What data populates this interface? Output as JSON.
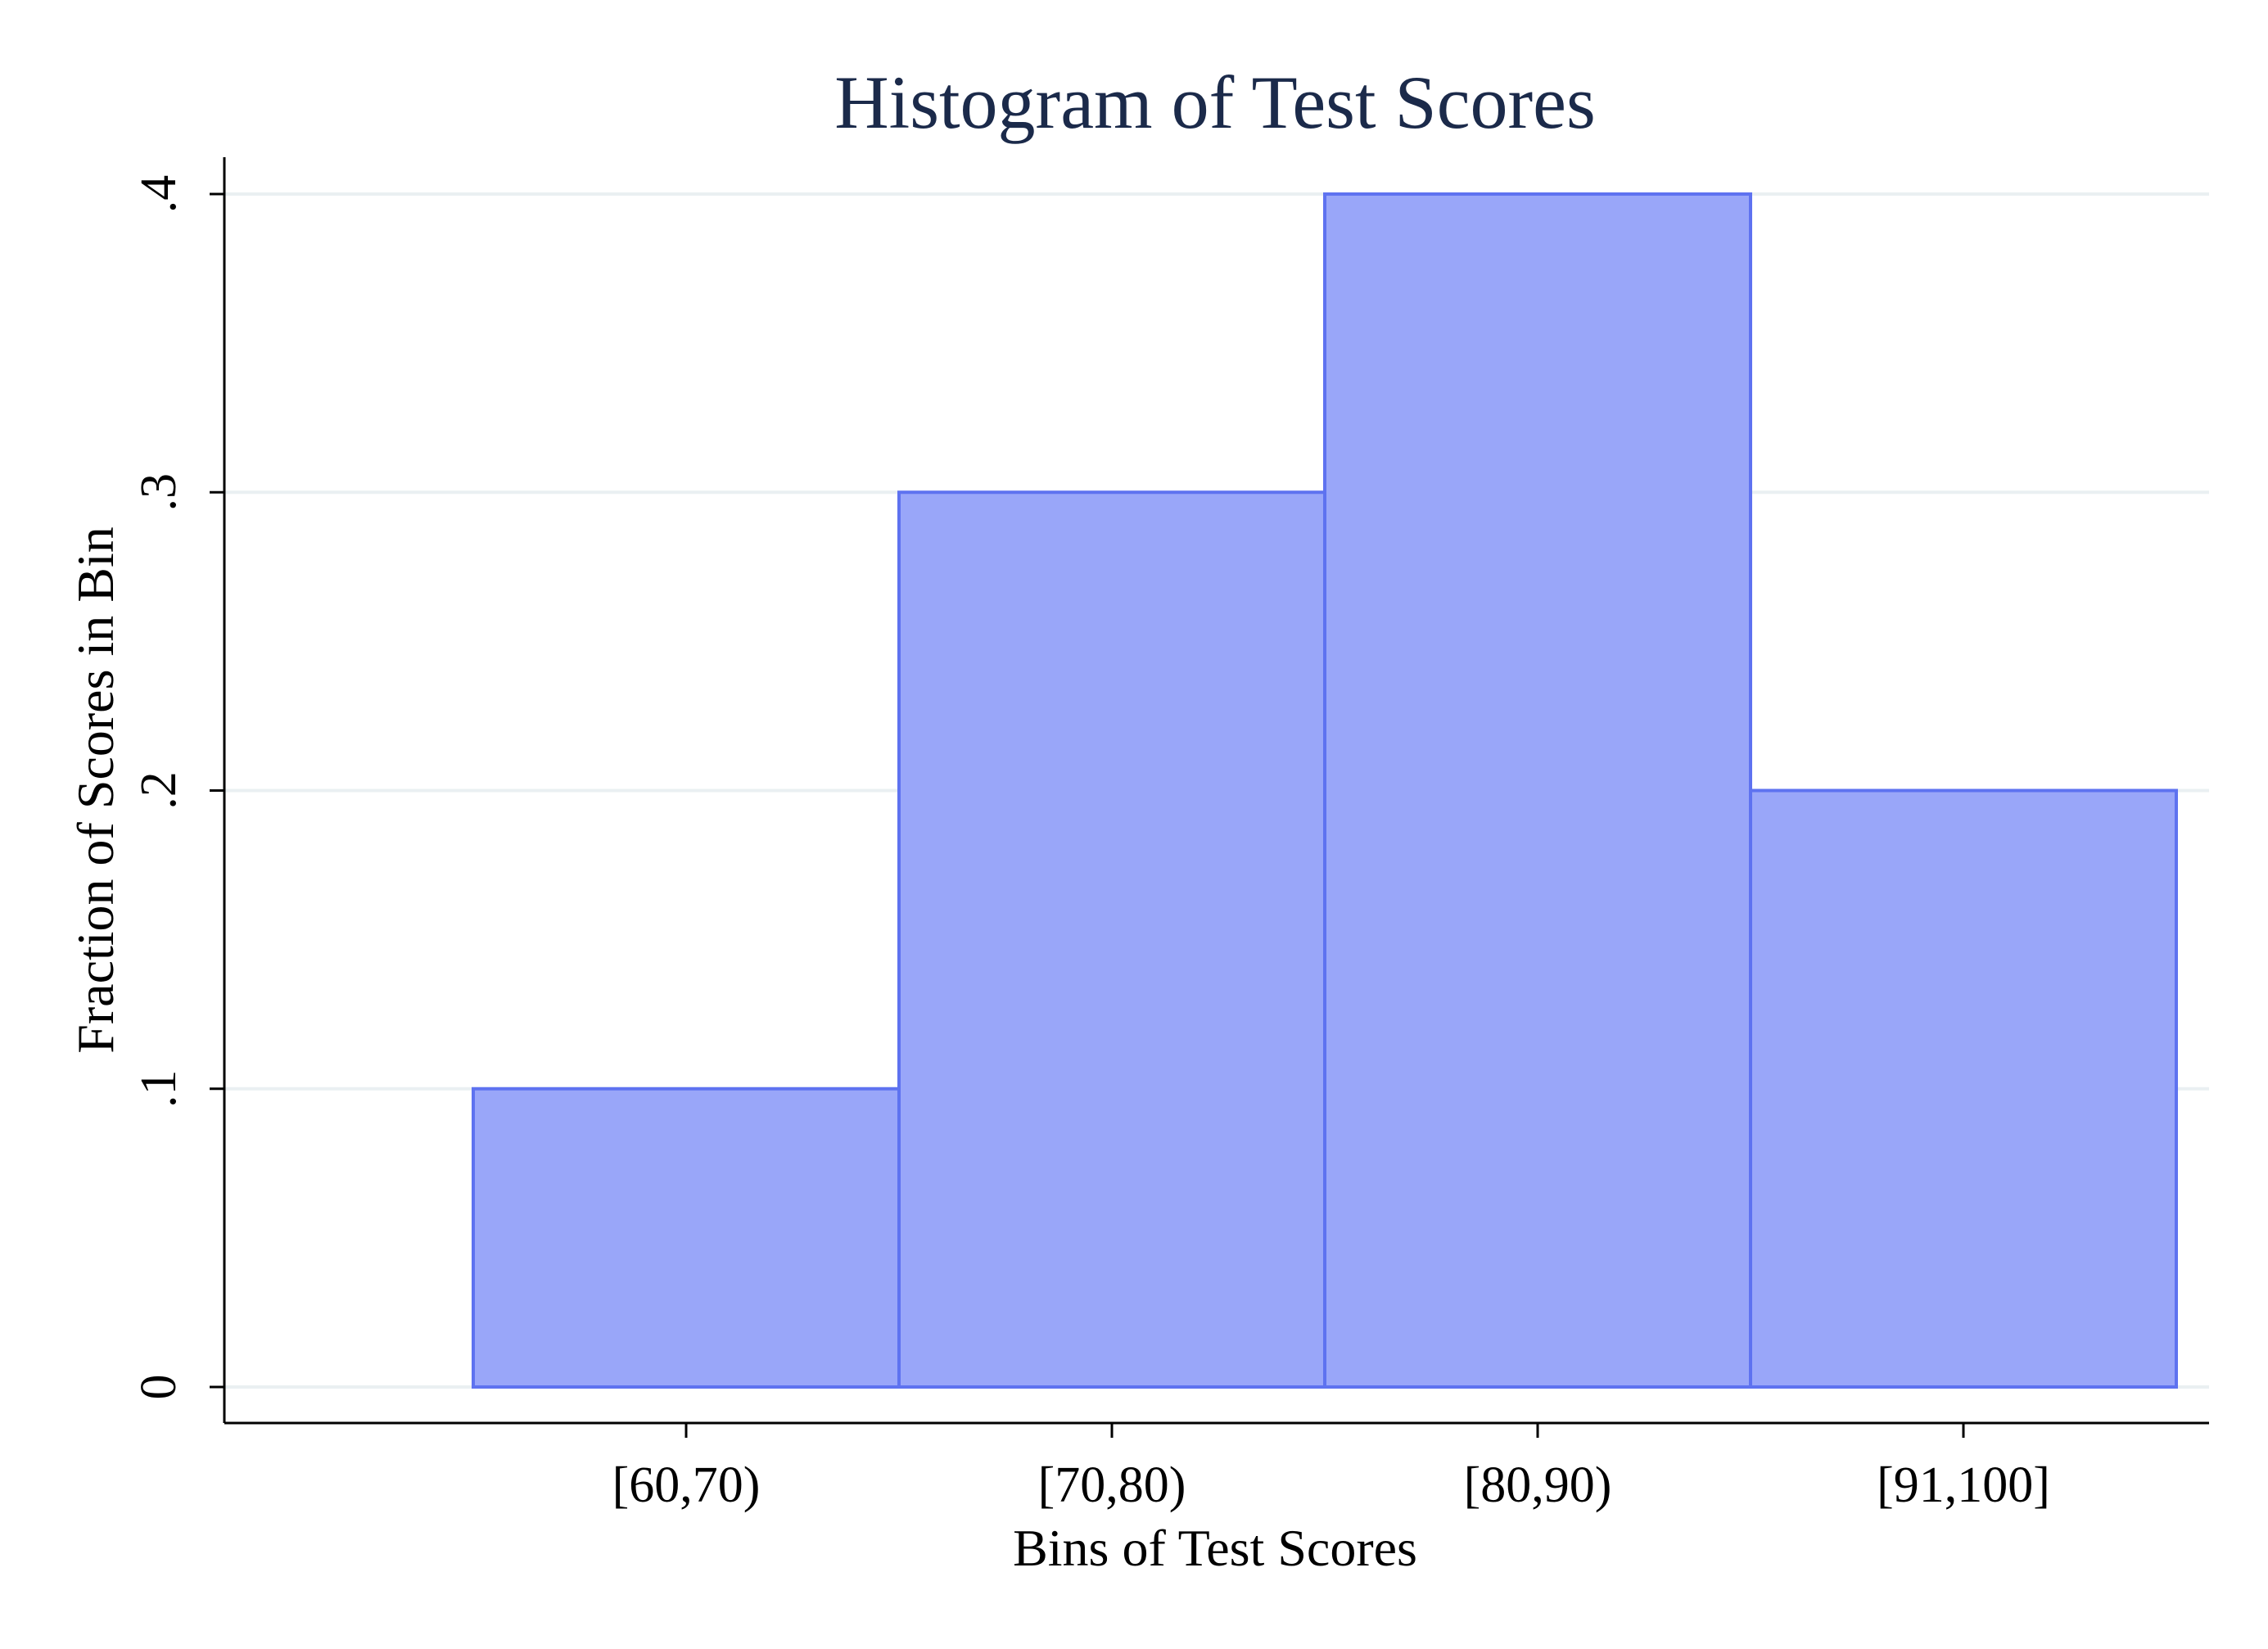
{
  "chart_data": {
    "type": "bar",
    "title": "Histogram of Test Scores",
    "xlabel": "Bins of Test Scores",
    "ylabel": "Fraction of Scores in Bin",
    "categories": [
      "[60,70)",
      "[70,80)",
      "[80,90)",
      "[91,100]"
    ],
    "values": [
      0.1,
      0.3,
      0.4,
      0.2
    ],
    "ylim": [
      0,
      0.4
    ],
    "yticks": [
      0,
      0.1,
      0.2,
      0.3,
      0.4
    ],
    "ytick_labels": [
      "0",
      ".1",
      ".2",
      ".3",
      ".4"
    ],
    "grid": true,
    "legend": "none"
  },
  "colors": {
    "bar_fill": "#99a6f9",
    "bar_edge": "#5e72f0",
    "title": "#1b2a4a",
    "grid": "#eaf0f2",
    "background": "#ffffff"
  }
}
